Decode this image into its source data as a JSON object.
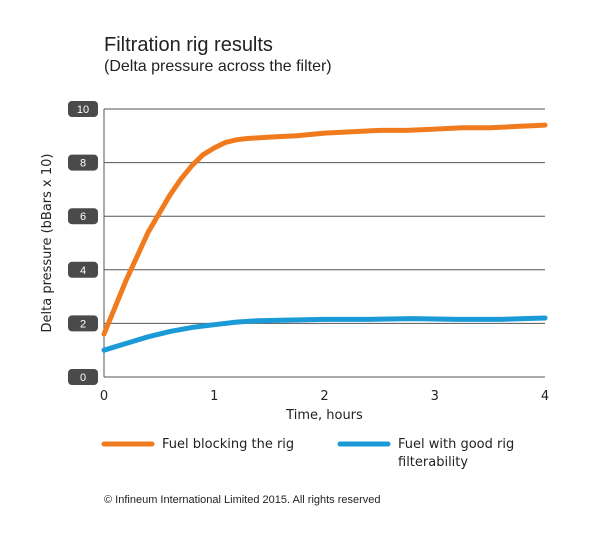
{
  "header": {
    "title": "Filtration rig results",
    "subtitle": "(Delta pressure across the filter)"
  },
  "footer": {
    "copyright": "© Infineum International Limited 2015. All rights reserved"
  },
  "colors": {
    "series_orange": "#f07b1e",
    "series_blue": "#1a9ad7",
    "tick_badge": "#4a4a4a",
    "grid": "#555555"
  },
  "chart_data": {
    "type": "line",
    "title": "Filtration rig results",
    "subtitle": "(Delta pressure across the filter)",
    "xlabel": "Time, hours",
    "ylabel": "Delta pressure (bBars x 10)",
    "xlim": [
      0,
      4
    ],
    "ylim": [
      0,
      10
    ],
    "x_ticks": [
      "0",
      "1",
      "2",
      "3",
      "4"
    ],
    "y_ticks": [
      "0",
      "2",
      "4",
      "6",
      "8",
      "10"
    ],
    "grid": true,
    "legend_position": "bottom",
    "series": [
      {
        "name": "Fuel blocking the rig",
        "color": "#f07b1e",
        "x": [
          0,
          0.1,
          0.2,
          0.3,
          0.4,
          0.5,
          0.6,
          0.7,
          0.8,
          0.9,
          1.0,
          1.1,
          1.2,
          1.3,
          1.5,
          1.75,
          2.0,
          2.25,
          2.5,
          2.75,
          3.0,
          3.25,
          3.5,
          3.75,
          4.0
        ],
        "values": [
          1.6,
          2.6,
          3.6,
          4.5,
          5.4,
          6.1,
          6.8,
          7.4,
          7.9,
          8.3,
          8.55,
          8.75,
          8.85,
          8.9,
          8.95,
          9.0,
          9.1,
          9.15,
          9.2,
          9.2,
          9.25,
          9.3,
          9.3,
          9.35,
          9.4
        ]
      },
      {
        "name": "Fuel with good rig filterability",
        "color": "#1a9ad7",
        "x": [
          0,
          0.2,
          0.4,
          0.6,
          0.8,
          1.0,
          1.2,
          1.4,
          1.6,
          2.0,
          2.4,
          2.8,
          3.2,
          3.6,
          4.0
        ],
        "values": [
          1.0,
          1.25,
          1.5,
          1.7,
          1.85,
          1.95,
          2.05,
          2.1,
          2.12,
          2.15,
          2.15,
          2.18,
          2.15,
          2.15,
          2.2
        ]
      }
    ]
  }
}
